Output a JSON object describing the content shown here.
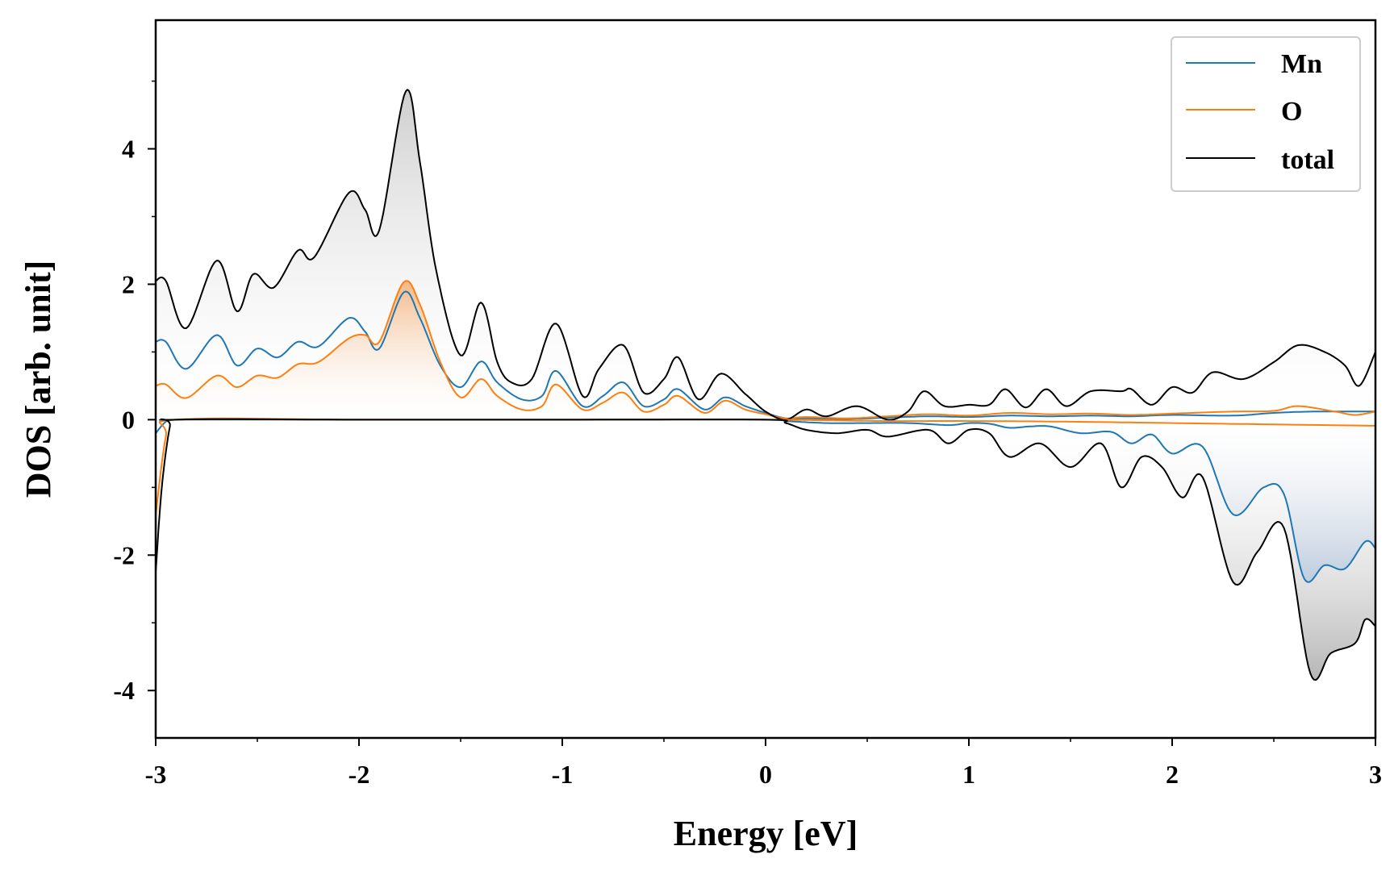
{
  "chart_data": {
    "type": "line",
    "title": "",
    "xlabel": "Energy [eV]",
    "ylabel": "DOS [arb. unit]",
    "xlim": [
      -3,
      3
    ],
    "ylim": [
      -4.7,
      5.9
    ],
    "xticks": [
      -3,
      -2,
      -1,
      0,
      1,
      2,
      3
    ],
    "xtick_labels": [
      "-3",
      "-2",
      "-1",
      "0",
      "1",
      "2",
      "3"
    ],
    "yticks": [
      -4,
      -2,
      0,
      2,
      4
    ],
    "ytick_labels": [
      "-4",
      "-2",
      "0",
      "2",
      "4"
    ],
    "grid": false,
    "legend_position": "top-right",
    "legend": [
      "Mn",
      "O",
      "total"
    ],
    "series": [
      {
        "name": "Mn",
        "channel": "spin-up",
        "color": "#1f77b4",
        "points": [
          [
            -3.0,
            1.15
          ],
          [
            -2.95,
            1.15
          ],
          [
            -2.85,
            0.75
          ],
          [
            -2.7,
            1.25
          ],
          [
            -2.6,
            0.8
          ],
          [
            -2.5,
            1.05
          ],
          [
            -2.4,
            0.92
          ],
          [
            -2.3,
            1.15
          ],
          [
            -2.2,
            1.08
          ],
          [
            -2.05,
            1.5
          ],
          [
            -1.97,
            1.3
          ],
          [
            -1.9,
            1.05
          ],
          [
            -1.78,
            1.88
          ],
          [
            -1.7,
            1.5
          ],
          [
            -1.6,
            0.8
          ],
          [
            -1.5,
            0.48
          ],
          [
            -1.4,
            0.86
          ],
          [
            -1.32,
            0.55
          ],
          [
            -1.2,
            0.3
          ],
          [
            -1.1,
            0.35
          ],
          [
            -1.03,
            0.72
          ],
          [
            -0.9,
            0.2
          ],
          [
            -0.8,
            0.35
          ],
          [
            -0.7,
            0.55
          ],
          [
            -0.6,
            0.2
          ],
          [
            -0.5,
            0.3
          ],
          [
            -0.43,
            0.45
          ],
          [
            -0.3,
            0.15
          ],
          [
            -0.2,
            0.33
          ],
          [
            -0.1,
            0.2
          ],
          [
            0.0,
            0.1
          ],
          [
            0.1,
            0.02
          ],
          [
            0.2,
            0.02
          ],
          [
            0.4,
            0.01
          ],
          [
            0.6,
            0.03
          ],
          [
            0.8,
            0.05
          ],
          [
            1.0,
            0.04
          ],
          [
            1.2,
            0.06
          ],
          [
            1.4,
            0.05
          ],
          [
            1.6,
            0.06
          ],
          [
            1.8,
            0.05
          ],
          [
            2.0,
            0.07
          ],
          [
            2.3,
            0.06
          ],
          [
            2.5,
            0.1
          ],
          [
            2.7,
            0.12
          ],
          [
            3.0,
            0.12
          ]
        ]
      },
      {
        "name": "O",
        "channel": "spin-up",
        "color": "#ff7f0e",
        "points": [
          [
            -3.0,
            0.5
          ],
          [
            -2.95,
            0.52
          ],
          [
            -2.85,
            0.32
          ],
          [
            -2.7,
            0.65
          ],
          [
            -2.6,
            0.48
          ],
          [
            -2.5,
            0.65
          ],
          [
            -2.4,
            0.62
          ],
          [
            -2.3,
            0.82
          ],
          [
            -2.2,
            0.85
          ],
          [
            -2.05,
            1.2
          ],
          [
            -1.97,
            1.25
          ],
          [
            -1.9,
            1.15
          ],
          [
            -1.78,
            2.03
          ],
          [
            -1.7,
            1.7
          ],
          [
            -1.6,
            0.85
          ],
          [
            -1.5,
            0.33
          ],
          [
            -1.4,
            0.6
          ],
          [
            -1.32,
            0.35
          ],
          [
            -1.2,
            0.15
          ],
          [
            -1.1,
            0.2
          ],
          [
            -1.03,
            0.52
          ],
          [
            -0.9,
            0.15
          ],
          [
            -0.8,
            0.25
          ],
          [
            -0.7,
            0.4
          ],
          [
            -0.6,
            0.12
          ],
          [
            -0.5,
            0.22
          ],
          [
            -0.43,
            0.35
          ],
          [
            -0.3,
            0.1
          ],
          [
            -0.2,
            0.28
          ],
          [
            -0.1,
            0.15
          ],
          [
            0.0,
            0.08
          ],
          [
            0.1,
            0.02
          ],
          [
            0.2,
            0.04
          ],
          [
            0.4,
            0.02
          ],
          [
            0.6,
            0.05
          ],
          [
            0.8,
            0.08
          ],
          [
            1.0,
            0.06
          ],
          [
            1.2,
            0.1
          ],
          [
            1.4,
            0.08
          ],
          [
            1.6,
            0.09
          ],
          [
            1.8,
            0.07
          ],
          [
            2.0,
            0.09
          ],
          [
            2.3,
            0.12
          ],
          [
            2.5,
            0.13
          ],
          [
            2.62,
            0.2
          ],
          [
            2.8,
            0.12
          ],
          [
            2.9,
            0.07
          ],
          [
            3.0,
            0.12
          ]
        ]
      },
      {
        "name": "total",
        "channel": "spin-up",
        "color": "#000000",
        "points": [
          [
            -3.0,
            2.05
          ],
          [
            -2.95,
            2.05
          ],
          [
            -2.85,
            1.35
          ],
          [
            -2.7,
            2.35
          ],
          [
            -2.6,
            1.6
          ],
          [
            -2.52,
            2.15
          ],
          [
            -2.42,
            1.95
          ],
          [
            -2.3,
            2.5
          ],
          [
            -2.22,
            2.4
          ],
          [
            -2.05,
            3.35
          ],
          [
            -1.97,
            3.1
          ],
          [
            -1.9,
            2.8
          ],
          [
            -1.77,
            4.85
          ],
          [
            -1.7,
            3.8
          ],
          [
            -1.62,
            2.2
          ],
          [
            -1.5,
            0.95
          ],
          [
            -1.4,
            1.73
          ],
          [
            -1.32,
            0.85
          ],
          [
            -1.25,
            0.55
          ],
          [
            -1.15,
            0.6
          ],
          [
            -1.03,
            1.42
          ],
          [
            -0.9,
            0.35
          ],
          [
            -0.82,
            0.75
          ],
          [
            -0.7,
            1.1
          ],
          [
            -0.6,
            0.4
          ],
          [
            -0.5,
            0.6
          ],
          [
            -0.43,
            0.92
          ],
          [
            -0.33,
            0.3
          ],
          [
            -0.22,
            0.68
          ],
          [
            -0.1,
            0.38
          ],
          [
            0.0,
            0.12
          ],
          [
            0.1,
            0.0
          ],
          [
            0.2,
            0.15
          ],
          [
            0.3,
            0.05
          ],
          [
            0.45,
            0.2
          ],
          [
            0.6,
            0.0
          ],
          [
            0.7,
            0.12
          ],
          [
            0.78,
            0.42
          ],
          [
            0.88,
            0.2
          ],
          [
            1.0,
            0.22
          ],
          [
            1.1,
            0.22
          ],
          [
            1.18,
            0.45
          ],
          [
            1.28,
            0.18
          ],
          [
            1.38,
            0.45
          ],
          [
            1.48,
            0.2
          ],
          [
            1.6,
            0.42
          ],
          [
            1.75,
            0.42
          ],
          [
            1.8,
            0.45
          ],
          [
            1.9,
            0.22
          ],
          [
            2.0,
            0.48
          ],
          [
            2.1,
            0.4
          ],
          [
            2.2,
            0.7
          ],
          [
            2.35,
            0.6
          ],
          [
            2.5,
            0.85
          ],
          [
            2.62,
            1.1
          ],
          [
            2.75,
            1.0
          ],
          [
            2.85,
            0.8
          ],
          [
            2.92,
            0.5
          ],
          [
            3.0,
            1.0
          ]
        ]
      },
      {
        "name": "Mn",
        "channel": "spin-down",
        "color": "#1f77b4",
        "points": [
          [
            -3.0,
            -0.2
          ],
          [
            -2.95,
            -0.03
          ],
          [
            -2.9,
            0.0
          ],
          [
            -2.0,
            0.0
          ],
          [
            -1.0,
            0.0
          ],
          [
            0.0,
            0.0
          ],
          [
            0.1,
            -0.02
          ],
          [
            0.3,
            -0.05
          ],
          [
            0.5,
            -0.05
          ],
          [
            0.7,
            -0.05
          ],
          [
            0.9,
            -0.08
          ],
          [
            1.0,
            -0.05
          ],
          [
            1.1,
            -0.06
          ],
          [
            1.2,
            -0.12
          ],
          [
            1.3,
            -0.1
          ],
          [
            1.4,
            -0.1
          ],
          [
            1.55,
            -0.2
          ],
          [
            1.7,
            -0.18
          ],
          [
            1.8,
            -0.35
          ],
          [
            1.9,
            -0.22
          ],
          [
            2.0,
            -0.5
          ],
          [
            2.15,
            -0.4
          ],
          [
            2.3,
            -1.4
          ],
          [
            2.45,
            -1.0
          ],
          [
            2.55,
            -1.1
          ],
          [
            2.65,
            -2.35
          ],
          [
            2.75,
            -2.15
          ],
          [
            2.85,
            -2.2
          ],
          [
            2.95,
            -1.8
          ],
          [
            3.0,
            -1.9
          ]
        ]
      },
      {
        "name": "O",
        "channel": "spin-down",
        "color": "#ff7f0e",
        "points": [
          [
            -3.0,
            -1.4
          ],
          [
            -2.95,
            -0.25
          ],
          [
            -2.9,
            0.0
          ],
          [
            -2.0,
            0.0
          ],
          [
            -1.0,
            0.0
          ],
          [
            0.0,
            0.0
          ],
          [
            0.3,
            -0.01
          ],
          [
            0.6,
            -0.02
          ],
          [
            1.0,
            -0.02
          ],
          [
            1.5,
            -0.03
          ],
          [
            2.0,
            -0.05
          ],
          [
            2.5,
            -0.07
          ],
          [
            3.0,
            -0.09
          ]
        ]
      },
      {
        "name": "total",
        "channel": "spin-down",
        "color": "#000000",
        "points": [
          [
            -3.0,
            -2.25
          ],
          [
            -2.97,
            -1.0
          ],
          [
            -2.93,
            -0.1
          ],
          [
            -2.9,
            0.0
          ],
          [
            -2.0,
            0.0
          ],
          [
            -1.0,
            0.0
          ],
          [
            0.0,
            0.0
          ],
          [
            0.1,
            -0.05
          ],
          [
            0.2,
            -0.15
          ],
          [
            0.35,
            -0.2
          ],
          [
            0.5,
            -0.15
          ],
          [
            0.6,
            -0.25
          ],
          [
            0.8,
            -0.15
          ],
          [
            0.9,
            -0.35
          ],
          [
            1.0,
            -0.15
          ],
          [
            1.1,
            -0.2
          ],
          [
            1.2,
            -0.55
          ],
          [
            1.35,
            -0.35
          ],
          [
            1.5,
            -0.7
          ],
          [
            1.65,
            -0.35
          ],
          [
            1.75,
            -1.0
          ],
          [
            1.85,
            -0.55
          ],
          [
            1.95,
            -0.7
          ],
          [
            2.05,
            -1.15
          ],
          [
            2.15,
            -0.85
          ],
          [
            2.3,
            -2.4
          ],
          [
            2.42,
            -1.95
          ],
          [
            2.55,
            -1.6
          ],
          [
            2.68,
            -3.75
          ],
          [
            2.78,
            -3.45
          ],
          [
            2.9,
            -3.3
          ],
          [
            2.95,
            -2.95
          ],
          [
            3.0,
            -3.05
          ]
        ]
      }
    ]
  }
}
